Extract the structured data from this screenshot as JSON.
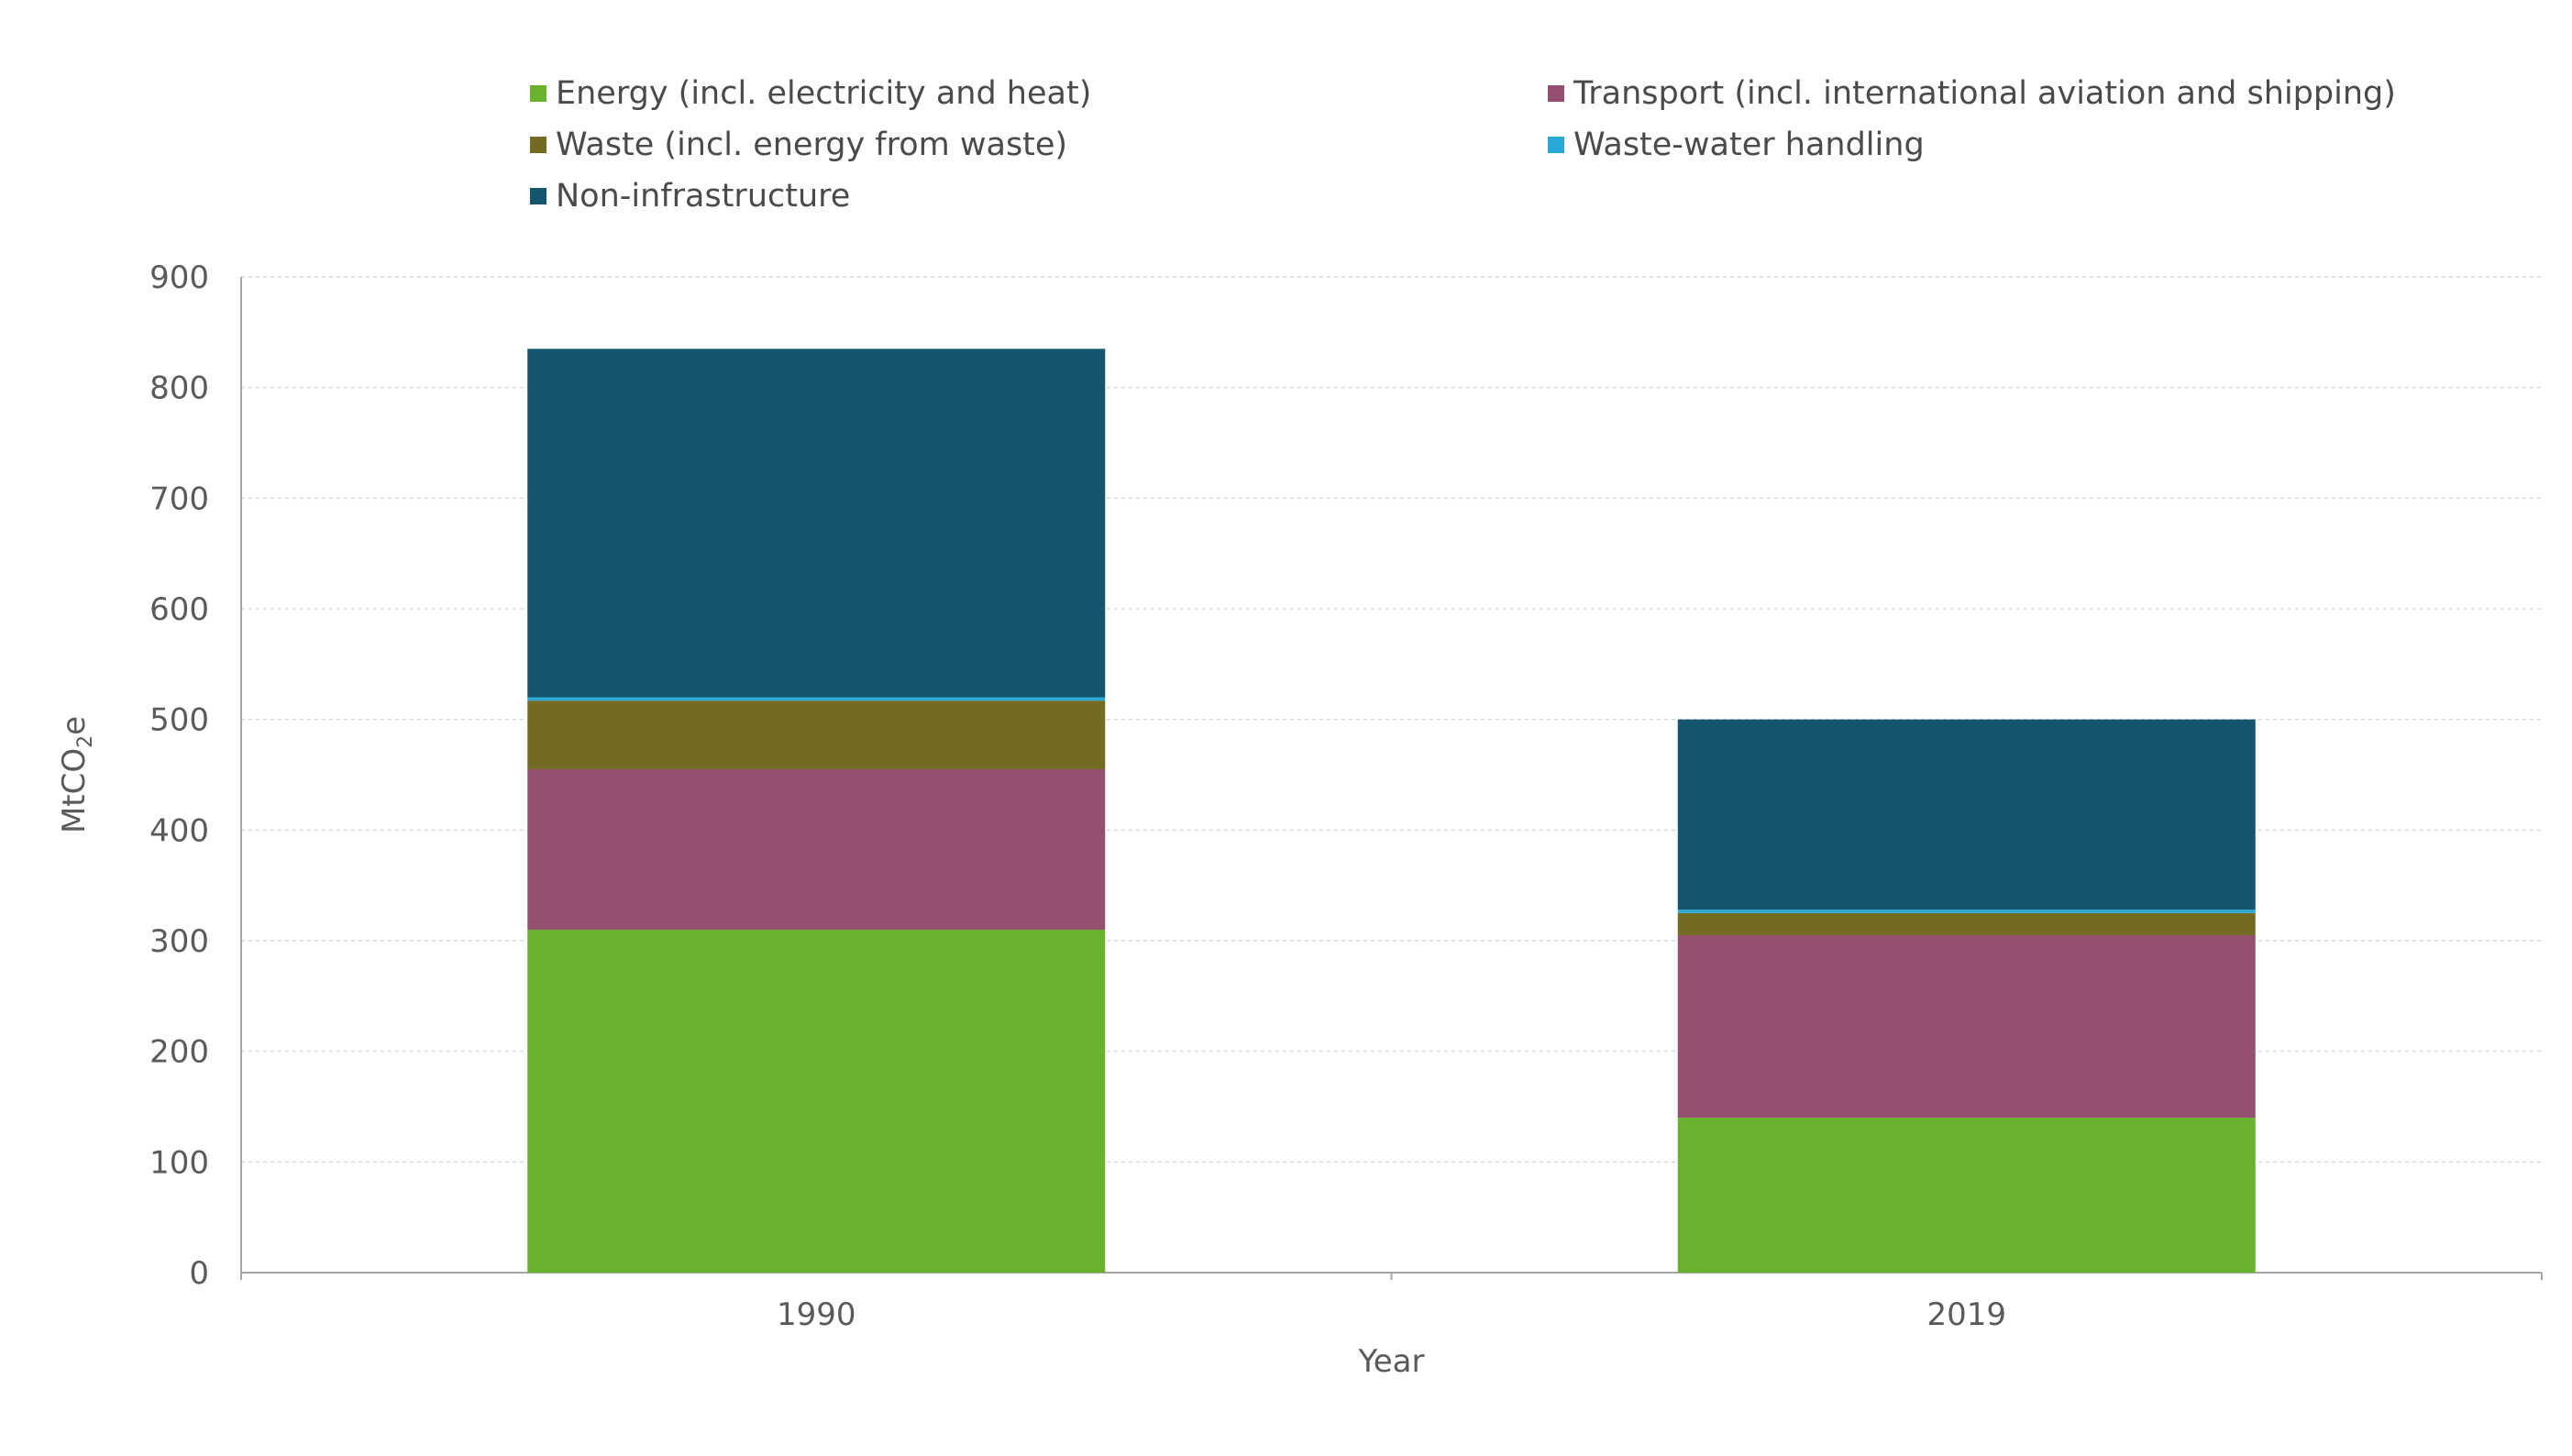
{
  "chart_data": {
    "type": "bar",
    "stacked": true,
    "categories": [
      "1990",
      "2019"
    ],
    "series": [
      {
        "name": "Energy (incl. electricity and heat)",
        "color": "#68b22e",
        "values": [
          310,
          140
        ]
      },
      {
        "name": "Transport (incl. international aviation and shipping)",
        "color": "#94506f",
        "values": [
          145,
          165
        ]
      },
      {
        "name": "Waste (incl. energy from waste)",
        "color": "#746b22",
        "values": [
          62,
          20
        ]
      },
      {
        "name": "Waste-water handling",
        "color": "#2aa9d8",
        "values": [
          3,
          3
        ]
      },
      {
        "name": "Non-infrastructure",
        "color": "#14566f",
        "values": [
          315,
          172
        ]
      }
    ],
    "xlabel": "Year",
    "ylabel": "MtCO2e",
    "ylabel_main": "MtCO",
    "ylabel_sub": "2",
    "ylabel_tail": "e",
    "ylim": [
      0,
      900
    ],
    "yticks": [
      "0",
      "100",
      "200",
      "300",
      "400",
      "500",
      "600",
      "700",
      "800",
      "900"
    ],
    "grid": true,
    "legend_position": "top"
  }
}
